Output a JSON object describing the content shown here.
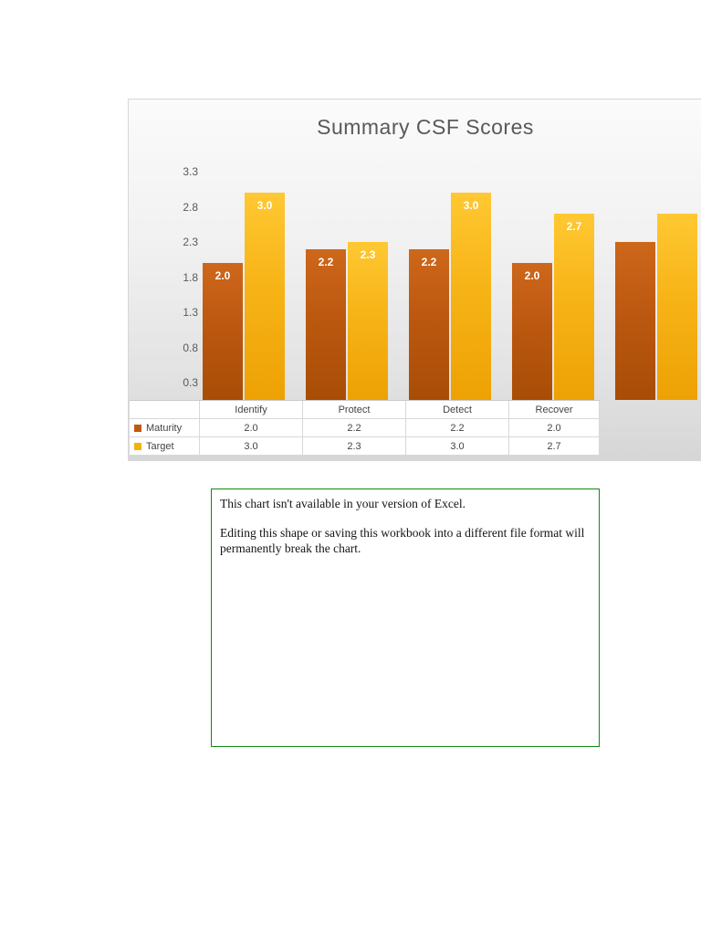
{
  "chart_data": {
    "type": "bar",
    "title": "Summary CSF Scores",
    "categories": [
      "Identify",
      "Protect",
      "Detect",
      "Recover"
    ],
    "series": [
      {
        "name": "Maturity",
        "values": [
          2.0,
          2.2,
          2.2,
          2.0
        ]
      },
      {
        "name": "Target",
        "values": [
          3.0,
          2.3,
          3.0,
          2.7
        ]
      }
    ],
    "y_ticks": [
      3.3,
      2.8,
      2.3,
      1.8,
      1.3,
      0.8,
      0.3
    ],
    "ylim": [
      0,
      3.5
    ],
    "data_labels": true,
    "grid": false,
    "legend_position": "data-table-left-column",
    "clipped_partial_group": {
      "maturity": 2.3,
      "target": 2.7
    },
    "colors": {
      "maturity": "#BE5A10",
      "target": "#F2B20A"
    }
  },
  "notice": {
    "line1": "This chart isn't available in your version of Excel.",
    "line2": "Editing this shape or saving this workbook into a different file format will permanently break the chart."
  }
}
